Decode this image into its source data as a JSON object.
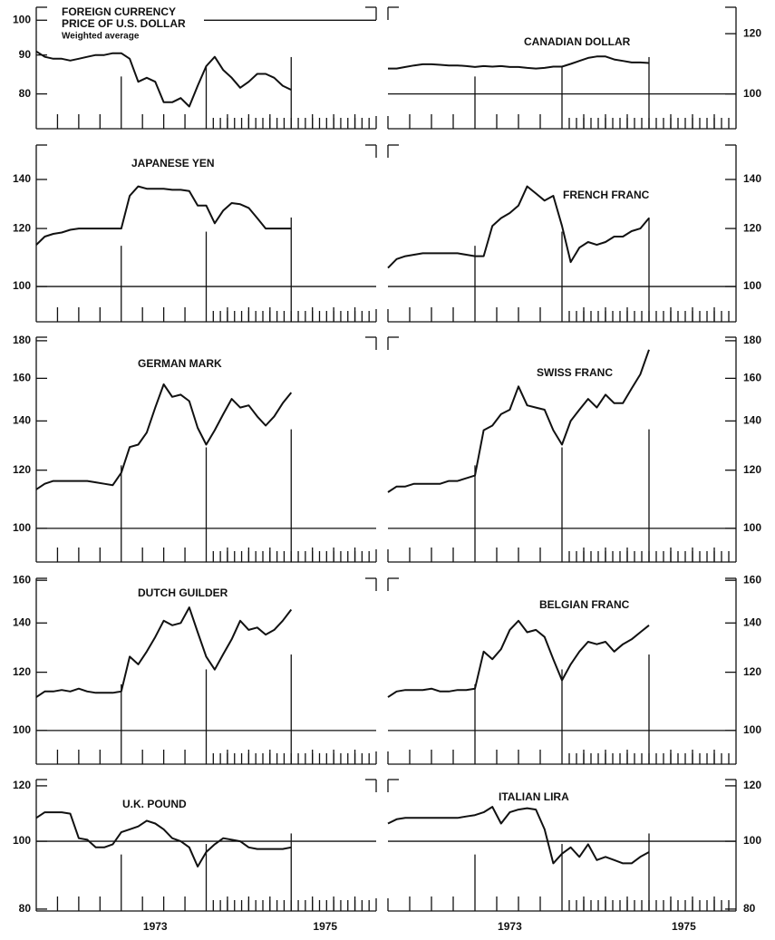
{
  "chart_data": [
    {
      "type": "line",
      "title_lines": [
        "FOREIGN CURRENCY",
        "PRICE OF U.S. DOLLAR"
      ],
      "subtitle": "Weighted average",
      "axis_side": "left",
      "log_scale": true,
      "color": "#111111",
      "reference_line": 100,
      "xlim": [
        1971.6,
        1975.6
      ],
      "ylim": [
        72,
        104
      ],
      "yticks": [
        80,
        90,
        100
      ],
      "x": [
        1971.6,
        1971.7,
        1971.8,
        1971.9,
        1972.0,
        1972.1,
        1972.2,
        1972.3,
        1972.4,
        1972.5,
        1972.6,
        1972.7,
        1972.8,
        1972.9,
        1973.0,
        1973.1,
        1973.2,
        1973.3,
        1973.4,
        1973.5,
        1973.6,
        1973.7,
        1973.8,
        1973.9,
        1974.0,
        1974.1,
        1974.2,
        1974.3,
        1974.4,
        1974.5,
        1974.6
      ],
      "values": [
        91,
        89.5,
        89,
        89,
        88.5,
        89,
        89.5,
        90,
        90,
        90.5,
        90.5,
        89,
        83,
        84,
        83,
        78,
        78,
        79,
        77,
        82,
        87,
        89.5,
        86,
        84,
        81.5,
        83,
        85,
        85,
        84,
        82,
        81
      ]
    },
    {
      "type": "line",
      "title": "CANADIAN DOLLAR",
      "axis_side": "right",
      "log_scale": true,
      "color": "#111111",
      "reference_line": 100,
      "xlim": [
        1971.6,
        1975.6
      ],
      "ylim": [
        90,
        130
      ],
      "yticks": [
        100,
        120
      ],
      "x": [
        1971.6,
        1971.7,
        1971.8,
        1971.9,
        1972.0,
        1972.1,
        1972.2,
        1972.3,
        1972.4,
        1972.5,
        1972.6,
        1972.7,
        1972.8,
        1972.9,
        1973.0,
        1973.1,
        1973.2,
        1973.3,
        1973.4,
        1973.5,
        1973.6,
        1973.7,
        1973.8,
        1973.9,
        1974.0,
        1974.1,
        1974.2,
        1974.3,
        1974.4,
        1974.5,
        1974.6
      ],
      "values": [
        108,
        108,
        108.5,
        109,
        109.4,
        109.4,
        109.2,
        109,
        109,
        108.8,
        108.5,
        108.8,
        108.6,
        108.8,
        108.5,
        108.5,
        108.2,
        108,
        108.2,
        108.6,
        108.6,
        109.5,
        110.5,
        111.5,
        112,
        112,
        111,
        110.5,
        110,
        110,
        109.8
      ]
    },
    {
      "type": "line",
      "title": "JAPANESE YEN",
      "axis_side": "left",
      "log_scale": true,
      "color": "#111111",
      "reference_line": 100,
      "xlim": [
        1971.6,
        1975.6
      ],
      "ylim": [
        89.5,
        156
      ],
      "yticks": [
        100,
        120,
        140
      ],
      "x": [
        1971.6,
        1971.7,
        1971.8,
        1971.9,
        1972.0,
        1972.1,
        1972.2,
        1972.3,
        1972.4,
        1972.5,
        1972.6,
        1972.7,
        1972.8,
        1972.9,
        1973.0,
        1973.1,
        1973.2,
        1973.3,
        1973.4,
        1973.5,
        1973.6,
        1973.7,
        1973.8,
        1973.9,
        1974.0,
        1974.1,
        1974.2,
        1974.3,
        1974.4,
        1974.5,
        1974.6
      ],
      "values": [
        114,
        117,
        118,
        118.5,
        119.5,
        120,
        120,
        120,
        120,
        120,
        120,
        133,
        137,
        136,
        136,
        136,
        135.5,
        135.5,
        135,
        129,
        129,
        122,
        127,
        130,
        129.5,
        128,
        124,
        120,
        120,
        120,
        120
      ]
    },
    {
      "type": "line",
      "title": "FRENCH FRANC",
      "axis_side": "right",
      "log_scale": true,
      "color": "#111111",
      "reference_line": 100,
      "xlim": [
        1971.6,
        1975.6
      ],
      "ylim": [
        89.5,
        156
      ],
      "yticks": [
        100,
        120,
        140
      ],
      "x": [
        1971.6,
        1971.7,
        1971.8,
        1971.9,
        1972.0,
        1972.1,
        1972.2,
        1972.3,
        1972.4,
        1972.5,
        1972.6,
        1972.7,
        1972.8,
        1972.9,
        1973.0,
        1973.1,
        1973.2,
        1973.3,
        1973.4,
        1973.5,
        1973.6,
        1973.7,
        1973.8,
        1973.9,
        1974.0,
        1974.1,
        1974.2,
        1974.3,
        1974.4,
        1974.5,
        1974.6
      ],
      "values": [
        106,
        109,
        110,
        110.5,
        111,
        111,
        111,
        111,
        111,
        110.5,
        110,
        110,
        121,
        124,
        126,
        129,
        137,
        134,
        131,
        133,
        121,
        108,
        113,
        115,
        114,
        115,
        117,
        117,
        119,
        120,
        124
      ]
    },
    {
      "type": "line",
      "title": "GERMAN MARK",
      "axis_side": "left",
      "log_scale": true,
      "color": "#111111",
      "reference_line": 100,
      "xlim": [
        1971.6,
        1975.6
      ],
      "ylim": [
        90,
        182
      ],
      "yticks": [
        100,
        120,
        140,
        160,
        180
      ],
      "x": [
        1971.6,
        1971.7,
        1971.8,
        1971.9,
        1972.0,
        1972.1,
        1972.2,
        1972.3,
        1972.4,
        1972.5,
        1972.6,
        1972.7,
        1972.8,
        1972.9,
        1973.0,
        1973.1,
        1973.2,
        1973.3,
        1973.4,
        1973.5,
        1973.6,
        1973.7,
        1973.8,
        1973.9,
        1974.0,
        1974.1,
        1974.2,
        1974.3,
        1974.4,
        1974.5,
        1974.6
      ],
      "values": [
        113,
        115,
        116,
        116,
        116,
        116,
        116,
        115.5,
        115,
        114.5,
        119,
        129,
        130,
        135,
        146,
        157,
        151,
        152,
        149,
        137,
        130,
        136,
        143,
        150,
        146,
        147,
        142,
        138,
        142,
        148,
        153
      ]
    },
    {
      "type": "line",
      "title": "SWISS FRANC",
      "axis_side": "right",
      "log_scale": true,
      "color": "#111111",
      "reference_line": 100,
      "xlim": [
        1971.6,
        1975.6
      ],
      "ylim": [
        90,
        182
      ],
      "yticks": [
        100,
        120,
        140,
        160,
        180
      ],
      "x": [
        1971.6,
        1971.7,
        1971.8,
        1971.9,
        1972.0,
        1972.1,
        1972.2,
        1972.3,
        1972.4,
        1972.5,
        1972.6,
        1972.7,
        1972.8,
        1972.9,
        1973.0,
        1973.1,
        1973.2,
        1973.3,
        1973.4,
        1973.5,
        1973.6,
        1973.7,
        1973.8,
        1973.9,
        1974.0,
        1974.1,
        1974.2,
        1974.3,
        1974.4,
        1974.5,
        1974.6
      ],
      "values": [
        112,
        114,
        114,
        115,
        115,
        115,
        115,
        116,
        116,
        117,
        118,
        136,
        138,
        143,
        145,
        156,
        147,
        146,
        145,
        136,
        130,
        140,
        145,
        150,
        146,
        152,
        148,
        148,
        155,
        162,
        175
      ]
    },
    {
      "type": "line",
      "title": "DUTCH GUILDER",
      "axis_side": "left",
      "log_scale": true,
      "color": "#111111",
      "reference_line": 100,
      "xlim": [
        1971.6,
        1975.6
      ],
      "ylim": [
        90,
        161
      ],
      "yticks": [
        100,
        120,
        140,
        160
      ],
      "x": [
        1971.6,
        1971.7,
        1971.8,
        1971.9,
        1972.0,
        1972.1,
        1972.2,
        1972.3,
        1972.4,
        1972.5,
        1972.6,
        1972.7,
        1972.8,
        1972.9,
        1973.0,
        1973.1,
        1973.2,
        1973.3,
        1973.4,
        1973.5,
        1973.6,
        1973.7,
        1973.8,
        1973.9,
        1974.0,
        1974.1,
        1974.2,
        1974.3,
        1974.4,
        1974.5,
        1974.6
      ],
      "values": [
        111,
        113,
        113,
        113.5,
        113,
        114,
        113,
        112.5,
        112.5,
        112.5,
        113,
        126,
        123,
        128,
        134,
        141,
        139,
        140,
        147,
        136,
        126,
        121,
        127,
        133,
        141,
        137,
        138,
        135,
        137,
        141,
        146
      ]
    },
    {
      "type": "line",
      "title": "BELGIAN FRANC",
      "axis_side": "right",
      "log_scale": true,
      "color": "#111111",
      "reference_line": 100,
      "xlim": [
        1971.6,
        1975.6
      ],
      "ylim": [
        90,
        161
      ],
      "yticks": [
        100,
        120,
        140,
        160
      ],
      "x": [
        1971.6,
        1971.7,
        1971.8,
        1971.9,
        1972.0,
        1972.1,
        1972.2,
        1972.3,
        1972.4,
        1972.5,
        1972.6,
        1972.7,
        1972.8,
        1972.9,
        1973.0,
        1973.1,
        1973.2,
        1973.3,
        1973.4,
        1973.5,
        1973.6,
        1973.7,
        1973.8,
        1973.9,
        1974.0,
        1974.1,
        1974.2,
        1974.3,
        1974.4,
        1974.5,
        1974.6
      ],
      "values": [
        111,
        113,
        113.5,
        113.5,
        113.5,
        114,
        113,
        113,
        113.5,
        113.5,
        114,
        128,
        125,
        129,
        137,
        141,
        136,
        137,
        134,
        125,
        117,
        123,
        128,
        132,
        131,
        132,
        128,
        131,
        133,
        136,
        139
      ]
    },
    {
      "type": "line",
      "title": "U.K. POUND",
      "axis_side": "left",
      "log_scale": true,
      "color": "#111111",
      "reference_line": 100,
      "xlim": [
        1971.6,
        1975.6
      ],
      "ylim": [
        79.5,
        122.5
      ],
      "yticks": [
        80,
        100,
        120
      ],
      "xticks": [
        1973,
        1975
      ],
      "x": [
        1971.6,
        1971.7,
        1971.8,
        1971.9,
        1972.0,
        1972.1,
        1972.2,
        1972.3,
        1972.4,
        1972.5,
        1972.6,
        1972.7,
        1972.8,
        1972.9,
        1973.0,
        1973.1,
        1973.2,
        1973.3,
        1973.4,
        1973.5,
        1973.6,
        1973.7,
        1973.8,
        1973.9,
        1974.0,
        1974.1,
        1974.2,
        1974.3,
        1974.4,
        1974.5,
        1974.6
      ],
      "values": [
        108,
        110,
        110,
        110,
        109.5,
        101,
        100.5,
        98,
        98,
        99,
        103,
        104,
        105,
        107,
        106,
        104,
        101,
        100,
        98,
        92,
        96.5,
        99,
        101,
        100.5,
        100,
        98,
        97.5,
        97.5,
        97.5,
        97.5,
        98
      ]
    },
    {
      "type": "line",
      "title": "ITALIAN LIRA",
      "axis_side": "right",
      "log_scale": true,
      "color": "#111111",
      "reference_line": 100,
      "xlim": [
        1971.6,
        1975.6
      ],
      "ylim": [
        79.5,
        122.5
      ],
      "yticks": [
        80,
        100,
        120
      ],
      "xticks": [
        1973,
        1975
      ],
      "x": [
        1971.6,
        1971.7,
        1971.8,
        1971.9,
        1972.0,
        1972.1,
        1972.2,
        1972.3,
        1972.4,
        1972.5,
        1972.6,
        1972.7,
        1972.8,
        1972.9,
        1973.0,
        1973.1,
        1973.2,
        1973.3,
        1973.4,
        1973.5,
        1973.6,
        1973.7,
        1973.8,
        1973.9,
        1974.0,
        1974.1,
        1974.2,
        1974.3,
        1974.4,
        1974.5,
        1974.6
      ],
      "values": [
        106,
        107.5,
        108,
        108,
        108,
        108,
        108,
        108,
        108,
        108.5,
        109,
        110,
        112,
        106,
        110,
        111,
        111.5,
        111,
        104,
        93,
        96,
        98,
        95,
        99,
        94,
        95,
        94,
        93,
        93,
        95,
        96.5
      ]
    }
  ]
}
